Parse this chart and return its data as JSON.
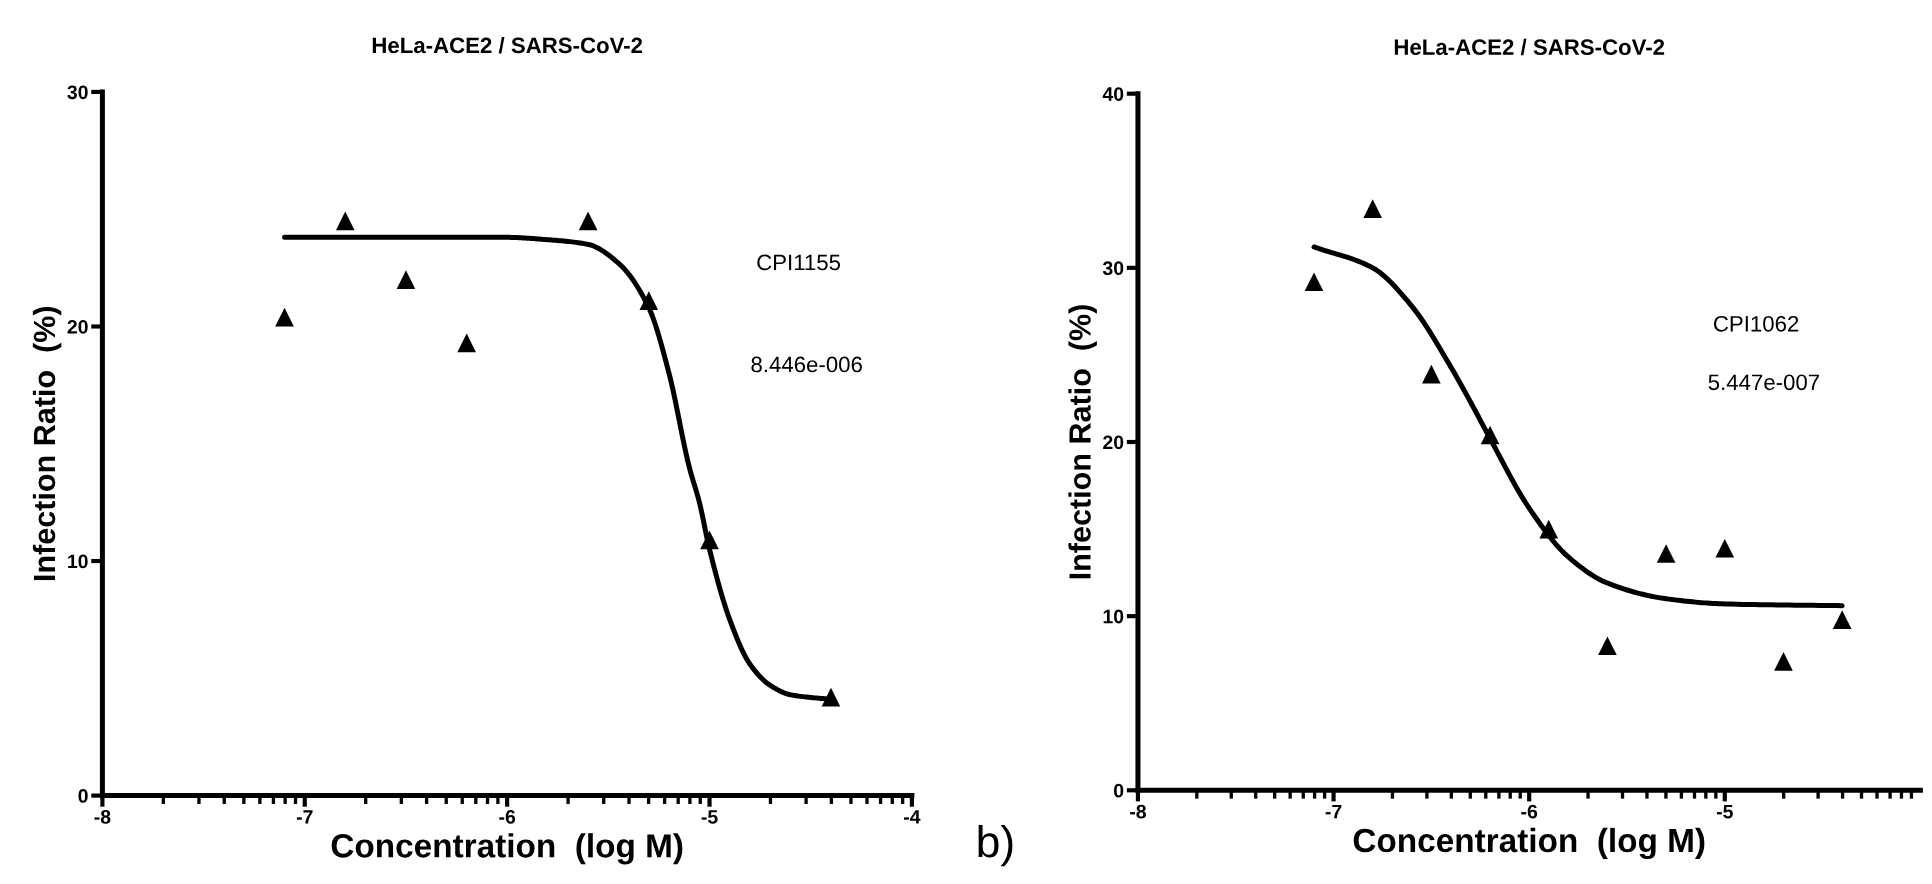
{
  "chart_data": [
    {
      "type": "scatter",
      "title": "HeLa-ACE2 / SARS-CoV-2",
      "xlabel": "Concentration  (log M)",
      "ylabel": "Infection Ratio  (%)",
      "xlim": [
        -8,
        -4
      ],
      "xticks": [
        -8,
        -7,
        -6,
        -5,
        -4
      ],
      "ylim": [
        0,
        30
      ],
      "yticks": [
        0,
        10,
        20,
        30
      ],
      "grid": false,
      "legend": false,
      "annotations": [
        "CPI1155",
        "8.446e-006"
      ],
      "series": [
        {
          "marker": "triangle",
          "color": "#000000",
          "x": [
            -7.1,
            -6.8,
            -6.5,
            -6.2,
            -5.6,
            -5.3,
            -5.0,
            -4.4
          ],
          "values": [
            20.4,
            24.5,
            22.0,
            19.3,
            24.5,
            21.1,
            10.9,
            4.2
          ]
        },
        {
          "type": "line",
          "color": "#000000",
          "x": [
            -7.1,
            -6.5,
            -6.0,
            -5.8,
            -5.6,
            -5.45,
            -5.3,
            -5.2,
            -5.1,
            -5.05,
            -5.0,
            -4.9,
            -4.8,
            -4.7,
            -4.6,
            -4.4
          ],
          "values": [
            23.8,
            23.8,
            23.8,
            23.7,
            23.5,
            22.7,
            20.8,
            18.0,
            14.0,
            12.5,
            10.5,
            7.5,
            5.6,
            4.7,
            4.3,
            4.1
          ]
        }
      ]
    },
    {
      "type": "scatter",
      "title": "HeLa-ACE2 / SARS-CoV-2",
      "xlabel": "Concentration  (log M)",
      "ylabel": "Infection Ratio  (%)",
      "xlim": [
        -8,
        -4
      ],
      "xticks": [
        -8,
        -7,
        -6,
        -5
      ],
      "ylim": [
        0,
        40
      ],
      "yticks": [
        0,
        10,
        20,
        30,
        40
      ],
      "grid": false,
      "legend": false,
      "annotations": [
        "CPI1062",
        "5.447e-007",
        "b)"
      ],
      "series": [
        {
          "marker": "triangle",
          "color": "#000000",
          "x": [
            -7.1,
            -6.8,
            -6.5,
            -6.2,
            -5.9,
            -5.6,
            -5.3,
            -5.0,
            -4.7,
            -4.4
          ],
          "values": [
            29.2,
            33.4,
            23.9,
            20.4,
            15.0,
            8.3,
            13.6,
            13.9,
            7.4,
            9.8
          ]
        },
        {
          "type": "line",
          "color": "#000000",
          "x": [
            -7.1,
            -6.8,
            -6.6,
            -6.4,
            -6.3,
            -6.2,
            -6.0,
            -5.8,
            -5.6,
            -5.3,
            -5.0,
            -4.4
          ],
          "values": [
            31.2,
            30.0,
            27.8,
            24.3,
            22.3,
            20.2,
            16.2,
            13.4,
            11.9,
            11.0,
            10.7,
            10.6
          ]
        }
      ]
    }
  ]
}
